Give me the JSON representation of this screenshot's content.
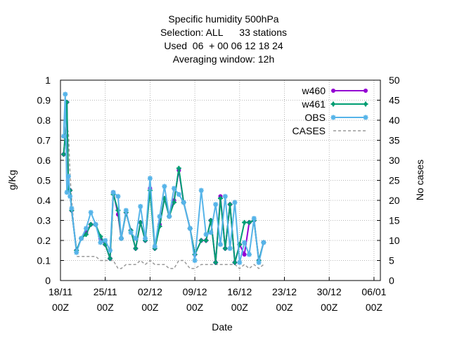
{
  "chart_data": {
    "type": "line",
    "title_lines": [
      "Specific humidity 500hPa",
      "Selection: ALL      33 stations",
      "Used  06  + 00 06 12 18 24",
      "Averaging window: 12h"
    ],
    "xlabel": "Date",
    "ylabel": "g/Kg",
    "y2label": "No cases",
    "xlim": [
      0,
      1200
    ],
    "ylim": [
      0,
      1
    ],
    "y2lim": [
      0,
      50
    ],
    "x_ticks": [
      {
        "v": 0,
        "l1": "18/11",
        "l2": "00Z"
      },
      {
        "v": 168,
        "l1": "25/11",
        "l2": "00Z"
      },
      {
        "v": 336,
        "l1": "02/12",
        "l2": "00Z"
      },
      {
        "v": 504,
        "l1": "09/12",
        "l2": "00Z"
      },
      {
        "v": 672,
        "l1": "16/12",
        "l2": "00Z"
      },
      {
        "v": 840,
        "l1": "23/12",
        "l2": "00Z"
      },
      {
        "v": 1008,
        "l1": "30/12",
        "l2": "00Z"
      },
      {
        "v": 1176,
        "l1": "06/01",
        "l2": "00Z"
      }
    ],
    "y_ticks": [
      "0",
      "0.1",
      "0.2",
      "0.3",
      "0.4",
      "0.5",
      "0.6",
      "0.7",
      "0.8",
      "0.9",
      "1"
    ],
    "y2_ticks": [
      "0",
      "5",
      "10",
      "15",
      "20",
      "25",
      "30",
      "35",
      "40",
      "45",
      "50"
    ],
    "grid": true,
    "legend_position": "top-right",
    "series": [
      {
        "name": "w460",
        "color": "#9400d3",
        "marker": "circle",
        "axis": "y",
        "points": [
          [
            12,
            0.63
          ],
          [
            18,
            0.72
          ],
          [
            24,
            0.89
          ],
          [
            30,
            0.45
          ],
          [
            36,
            0.45
          ],
          [
            42,
            0.35
          ],
          [
            60,
            0.15
          ],
          [
            78,
            0.21
          ],
          [
            96,
            0.24
          ],
          [
            114,
            0.28
          ],
          [
            132,
            0.28
          ],
          [
            150,
            0.21
          ],
          [
            168,
            0.18
          ],
          [
            186,
            0.11
          ],
          [
            198,
            0.44
          ],
          [
            216,
            0.33
          ],
          [
            228,
            0.21
          ],
          [
            246,
            0.34
          ],
          [
            264,
            0.25
          ],
          [
            282,
            0.16
          ],
          [
            300,
            0.29
          ],
          [
            318,
            0.2
          ],
          [
            336,
            0.46
          ],
          [
            354,
            0.16
          ],
          [
            372,
            0.28
          ],
          [
            390,
            0.41
          ],
          [
            408,
            0.32
          ],
          [
            426,
            0.4
          ],
          [
            444,
            0.55
          ],
          [
            462,
            0.39
          ],
          [
            486,
            0.26
          ],
          [
            504,
            0.13
          ],
          [
            528,
            0.2
          ],
          [
            546,
            0.2
          ],
          [
            564,
            0.3
          ],
          [
            582,
            0.09
          ],
          [
            600,
            0.42
          ],
          [
            618,
            0.16
          ],
          [
            636,
            0.38
          ],
          [
            654,
            0.09
          ],
          [
            672,
            0.18
          ],
          [
            690,
            0.13
          ],
          [
            708,
            0.29
          ],
          [
            726,
            0.3
          ],
          [
            744,
            0.1
          ],
          [
            762,
            0.19
          ]
        ]
      },
      {
        "name": "w461",
        "color": "#009e73",
        "marker": "cross",
        "axis": "y",
        "points": [
          [
            12,
            0.63
          ],
          [
            18,
            0.72
          ],
          [
            24,
            0.89
          ],
          [
            30,
            0.45
          ],
          [
            36,
            0.45
          ],
          [
            42,
            0.35
          ],
          [
            60,
            0.15
          ],
          [
            78,
            0.21
          ],
          [
            96,
            0.23
          ],
          [
            114,
            0.28
          ],
          [
            132,
            0.28
          ],
          [
            150,
            0.22
          ],
          [
            168,
            0.18
          ],
          [
            186,
            0.11
          ],
          [
            198,
            0.43
          ],
          [
            216,
            0.35
          ],
          [
            228,
            0.21
          ],
          [
            246,
            0.34
          ],
          [
            264,
            0.25
          ],
          [
            282,
            0.16
          ],
          [
            300,
            0.29
          ],
          [
            318,
            0.2
          ],
          [
            336,
            0.45
          ],
          [
            354,
            0.16
          ],
          [
            372,
            0.27
          ],
          [
            390,
            0.41
          ],
          [
            408,
            0.32
          ],
          [
            426,
            0.39
          ],
          [
            444,
            0.56
          ],
          [
            462,
            0.39
          ],
          [
            486,
            0.26
          ],
          [
            504,
            0.13
          ],
          [
            528,
            0.2
          ],
          [
            546,
            0.2
          ],
          [
            564,
            0.3
          ],
          [
            582,
            0.09
          ],
          [
            600,
            0.41
          ],
          [
            618,
            0.16
          ],
          [
            636,
            0.38
          ],
          [
            654,
            0.09
          ],
          [
            672,
            0.18
          ],
          [
            690,
            0.29
          ],
          [
            708,
            0.29
          ],
          [
            726,
            0.3
          ],
          [
            744,
            0.1
          ],
          [
            762,
            0.19
          ]
        ]
      },
      {
        "name": "OBS",
        "color": "#56b4e9",
        "marker": "star",
        "axis": "y",
        "points": [
          [
            12,
            0.72
          ],
          [
            18,
            0.93
          ],
          [
            24,
            0.44
          ],
          [
            30,
            0.52
          ],
          [
            36,
            0.42
          ],
          [
            42,
            0.36
          ],
          [
            60,
            0.14
          ],
          [
            78,
            0.21
          ],
          [
            96,
            0.26
          ],
          [
            114,
            0.34
          ],
          [
            132,
            0.28
          ],
          [
            150,
            0.19
          ],
          [
            168,
            0.2
          ],
          [
            186,
            0.15
          ],
          [
            198,
            0.44
          ],
          [
            216,
            0.42
          ],
          [
            228,
            0.21
          ],
          [
            246,
            0.35
          ],
          [
            264,
            0.24
          ],
          [
            282,
            0.21
          ],
          [
            300,
            0.37
          ],
          [
            318,
            0.21
          ],
          [
            336,
            0.51
          ],
          [
            354,
            0.17
          ],
          [
            372,
            0.32
          ],
          [
            390,
            0.47
          ],
          [
            408,
            0.32
          ],
          [
            426,
            0.46
          ],
          [
            444,
            0.43
          ],
          [
            462,
            0.39
          ],
          [
            486,
            0.26
          ],
          [
            504,
            0.1
          ],
          [
            528,
            0.45
          ],
          [
            546,
            0.23
          ],
          [
            564,
            0.24
          ],
          [
            582,
            0.38
          ],
          [
            600,
            0.18
          ],
          [
            618,
            0.42
          ],
          [
            636,
            0.16
          ],
          [
            654,
            0.39
          ],
          [
            672,
            0.09
          ],
          [
            690,
            0.19
          ],
          [
            708,
            0.13
          ],
          [
            726,
            0.31
          ],
          [
            744,
            0.09
          ],
          [
            762,
            0.19
          ]
        ]
      },
      {
        "name": "CASES",
        "color": "#999999",
        "marker": "none",
        "dashed": true,
        "axis": "y2",
        "points": [
          [
            12,
            36
          ],
          [
            18,
            37
          ],
          [
            24,
            38
          ],
          [
            30,
            37
          ],
          [
            36,
            26
          ],
          [
            42,
            20
          ],
          [
            60,
            6
          ],
          [
            78,
            6
          ],
          [
            96,
            6
          ],
          [
            114,
            6
          ],
          [
            132,
            6
          ],
          [
            150,
            5
          ],
          [
            168,
            5
          ],
          [
            186,
            5
          ],
          [
            198,
            5
          ],
          [
            216,
            3
          ],
          [
            228,
            3
          ],
          [
            246,
            4
          ],
          [
            264,
            4
          ],
          [
            282,
            4
          ],
          [
            300,
            5
          ],
          [
            318,
            4
          ],
          [
            336,
            5
          ],
          [
            354,
            4
          ],
          [
            372,
            4
          ],
          [
            390,
            4
          ],
          [
            408,
            3
          ],
          [
            426,
            3
          ],
          [
            444,
            5
          ],
          [
            462,
            5
          ],
          [
            486,
            3
          ],
          [
            504,
            3
          ],
          [
            528,
            4
          ],
          [
            546,
            4
          ],
          [
            564,
            4
          ],
          [
            582,
            4
          ],
          [
            600,
            4
          ],
          [
            618,
            4
          ],
          [
            636,
            4
          ],
          [
            654,
            4
          ],
          [
            672,
            3
          ],
          [
            690,
            4
          ],
          [
            708,
            3
          ],
          [
            726,
            4
          ],
          [
            744,
            3
          ],
          [
            762,
            4
          ]
        ]
      }
    ]
  }
}
